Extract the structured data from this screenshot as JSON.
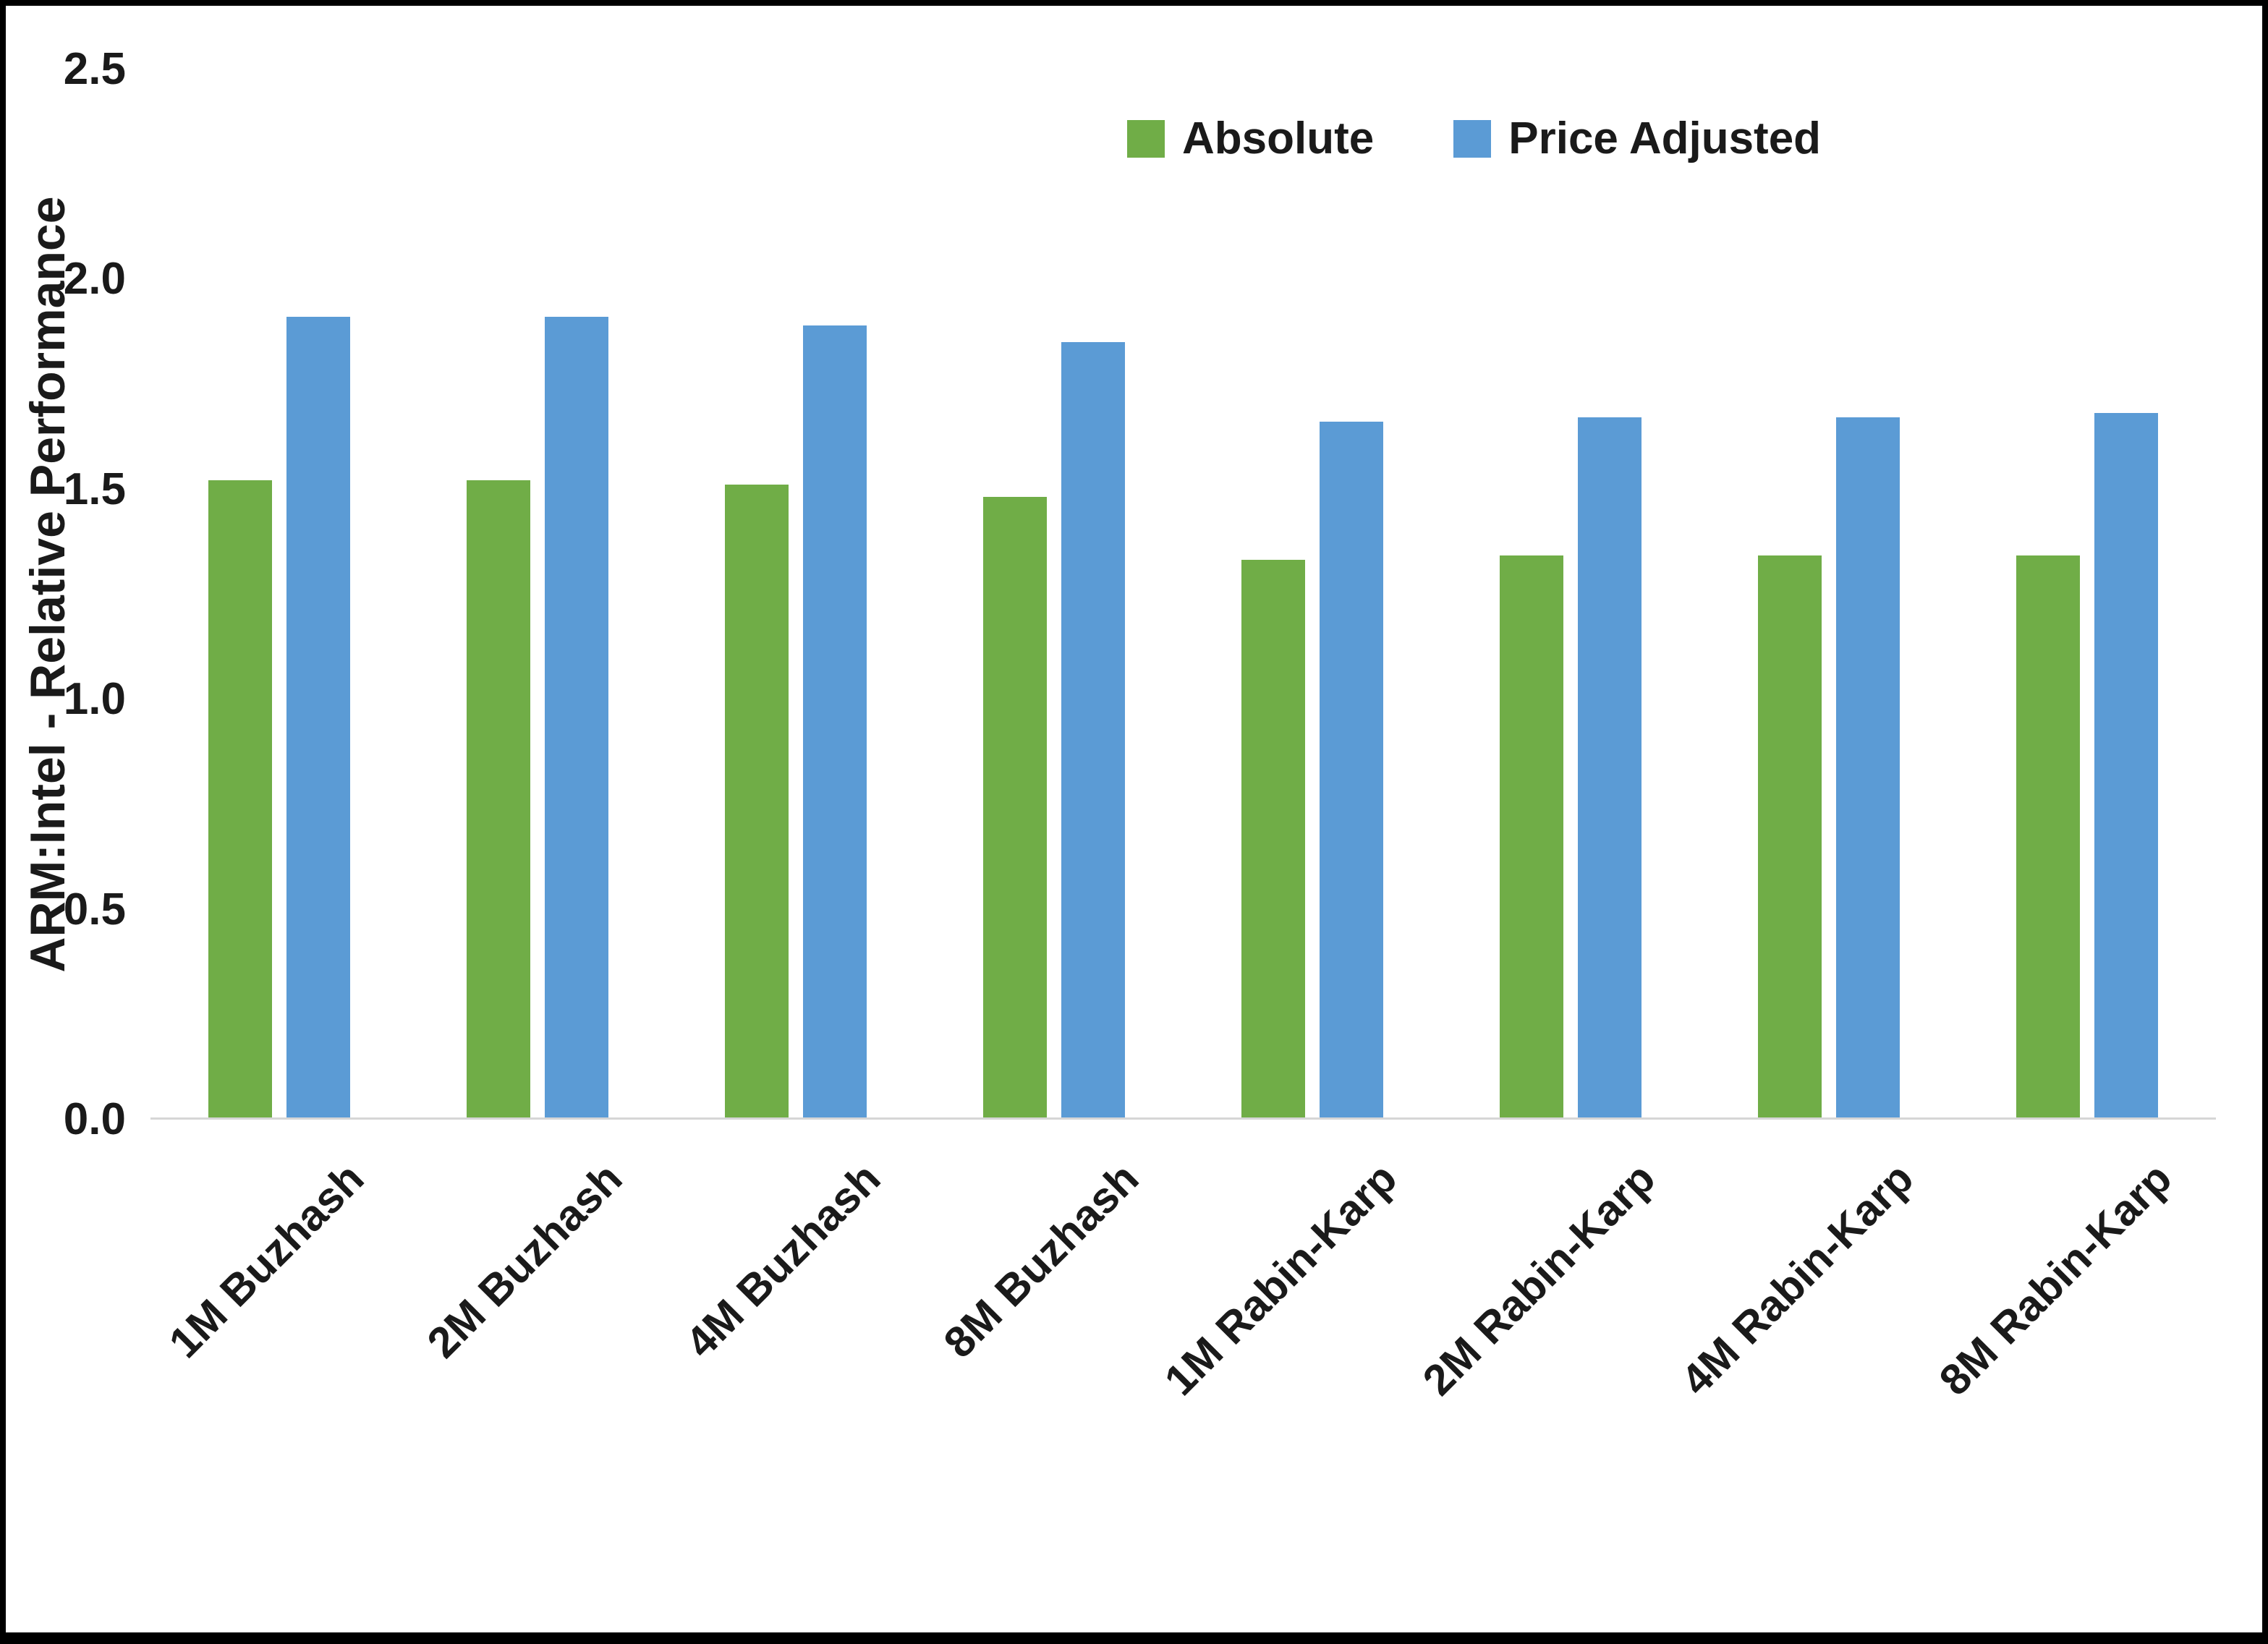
{
  "chart_data": {
    "type": "bar",
    "title": "",
    "xlabel": "",
    "ylabel": "ARM:Intel - Relative Performance",
    "ylim": [
      0,
      2.5
    ],
    "yticks": [
      0,
      0.5,
      1.0,
      1.5,
      2.0,
      2.5
    ],
    "ytick_labels": [
      "0.0",
      "0.5",
      "1.0",
      "1.5",
      "2.0",
      "2.5"
    ],
    "grid": false,
    "legend_position": "top-right-inside",
    "categories": [
      "1M Buzhash",
      "2M Buzhash",
      "4M Buzhash",
      "8M Buzhash",
      "1M Rabin-Karp",
      "2M Rabin-Karp",
      "4M Rabin-Karp",
      "8M Rabin-Karp"
    ],
    "series": [
      {
        "name": "Absolute",
        "color": "#70AD47",
        "values": [
          1.52,
          1.52,
          1.51,
          1.48,
          1.33,
          1.34,
          1.34,
          1.34
        ]
      },
      {
        "name": "Price Adjusted",
        "color": "#5B9BD5",
        "values": [
          1.91,
          1.91,
          1.89,
          1.85,
          1.66,
          1.67,
          1.67,
          1.68
        ]
      }
    ]
  }
}
